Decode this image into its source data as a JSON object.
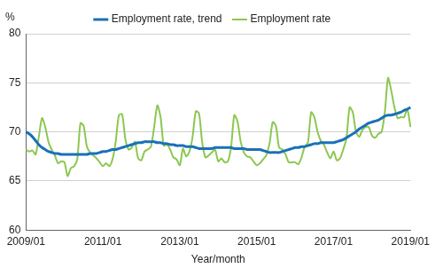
{
  "chart_data": {
    "type": "line",
    "x_label": "Year/month",
    "y_label": "%",
    "categories": [
      "2009/01",
      null,
      null,
      null,
      null,
      null,
      null,
      null,
      null,
      null,
      null,
      null,
      null,
      null,
      null,
      null,
      null,
      null,
      null,
      null,
      null,
      null,
      null,
      null,
      "2011/01",
      null,
      null,
      null,
      null,
      null,
      null,
      null,
      null,
      null,
      null,
      null,
      null,
      null,
      null,
      null,
      null,
      null,
      null,
      null,
      null,
      null,
      null,
      null,
      "2013/01",
      null,
      null,
      null,
      null,
      null,
      null,
      null,
      null,
      null,
      null,
      null,
      null,
      null,
      null,
      null,
      null,
      null,
      null,
      null,
      null,
      null,
      null,
      null,
      "2015/01",
      null,
      null,
      null,
      null,
      null,
      null,
      null,
      null,
      null,
      null,
      null,
      null,
      null,
      null,
      null,
      null,
      null,
      null,
      null,
      null,
      null,
      null,
      null,
      "2017/01",
      null,
      null,
      null,
      null,
      null,
      null,
      null,
      null,
      null,
      null,
      null,
      null,
      null,
      null,
      null,
      null,
      null,
      null,
      null,
      null,
      null,
      null,
      null,
      "2019/01"
    ],
    "series": [
      {
        "name": "Employment rate",
        "color": "#8cc751",
        "values": [
          68.2,
          68.0,
          68.1,
          67.7,
          69.5,
          71.4,
          70.5,
          69.0,
          68.2,
          67.6,
          66.8,
          67.0,
          66.9,
          65.5,
          66.3,
          66.5,
          67.2,
          70.9,
          70.6,
          68.5,
          67.9,
          67.6,
          67.3,
          66.9,
          66.5,
          66.8,
          66.5,
          67.2,
          69.0,
          71.7,
          71.8,
          69.3,
          68.2,
          68.4,
          69.0,
          67.3,
          67.1,
          68.0,
          68.2,
          68.5,
          70.5,
          72.7,
          71.5,
          68.6,
          68.7,
          68.2,
          67.4,
          67.2,
          66.6,
          68.3,
          67.5,
          68.0,
          69.5,
          72.1,
          71.9,
          68.9,
          67.4,
          67.6,
          67.9,
          68.2,
          67.0,
          67.3,
          66.9,
          67.0,
          68.4,
          71.7,
          71.1,
          69.0,
          67.9,
          67.5,
          67.4,
          67.0,
          66.6,
          66.8,
          67.2,
          67.6,
          68.8,
          71.0,
          70.6,
          68.4,
          68.2,
          67.7,
          66.9,
          66.9,
          66.9,
          66.7,
          67.4,
          68.5,
          68.9,
          72.0,
          71.5,
          70.0,
          69.1,
          68.7,
          67.9,
          67.3,
          68.0,
          67.1,
          67.3,
          68.2,
          69.3,
          72.5,
          72.0,
          70.0,
          69.5,
          70.2,
          70.5,
          70.5,
          69.6,
          69.4,
          69.8,
          70.0,
          72.0,
          75.5,
          74.2,
          72.5,
          71.4,
          71.5,
          71.5,
          72.3,
          70.5
        ]
      },
      {
        "name": "Employment rate, trend",
        "color": "#1a70b8",
        "values": [
          70.0,
          69.8,
          69.5,
          69.1,
          68.7,
          68.4,
          68.2,
          68.0,
          67.9,
          67.8,
          67.8,
          67.7,
          67.7,
          67.7,
          67.7,
          67.7,
          67.7,
          67.7,
          67.7,
          67.7,
          67.8,
          67.8,
          67.8,
          67.9,
          68.0,
          68.0,
          68.1,
          68.2,
          68.2,
          68.3,
          68.4,
          68.5,
          68.6,
          68.7,
          68.8,
          68.9,
          68.9,
          69.0,
          69.0,
          69.0,
          69.0,
          68.9,
          68.9,
          68.8,
          68.8,
          68.7,
          68.7,
          68.6,
          68.6,
          68.6,
          68.5,
          68.5,
          68.5,
          68.4,
          68.3,
          68.3,
          68.3,
          68.3,
          68.3,
          68.4,
          68.4,
          68.4,
          68.4,
          68.4,
          68.4,
          68.3,
          68.3,
          68.3,
          68.3,
          68.2,
          68.2,
          68.2,
          68.2,
          68.2,
          68.1,
          68.0,
          67.9,
          67.9,
          67.9,
          67.9,
          68.0,
          68.1,
          68.2,
          68.3,
          68.4,
          68.4,
          68.5,
          68.5,
          68.6,
          68.7,
          68.8,
          68.8,
          68.9,
          68.9,
          68.9,
          68.9,
          68.9,
          69.0,
          69.1,
          69.2,
          69.4,
          69.6,
          69.8,
          70.0,
          70.3,
          70.5,
          70.7,
          70.9,
          71.0,
          71.1,
          71.2,
          71.4,
          71.6,
          71.7,
          71.7,
          71.8,
          71.9,
          72.0,
          72.2,
          72.3,
          72.5
        ]
      }
    ],
    "ylim": [
      60,
      80
    ],
    "yticks": [
      60,
      65,
      70,
      75,
      80
    ],
    "grid": true,
    "legend": "top"
  }
}
